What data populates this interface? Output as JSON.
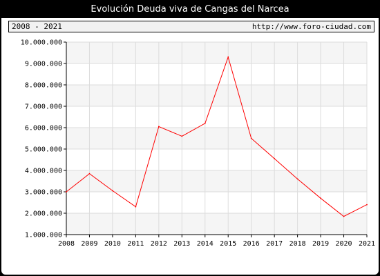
{
  "header": {
    "title": "Evolución Deuda viva de Cangas del Narcea",
    "period": "2008 - 2021",
    "url": "http://www.foro-ciudad.com"
  },
  "colors": {
    "line": "#ff0000",
    "band": "#f5f5f5",
    "grid": "#dcdcdc"
  },
  "chart_data": {
    "type": "line",
    "title": "Evolución Deuda viva de Cangas del Narcea",
    "x": [
      "2008",
      "2009",
      "2010",
      "2011",
      "2012",
      "2013",
      "2014",
      "2015",
      "2016",
      "2017",
      "2018",
      "2019",
      "2020",
      "2021"
    ],
    "series": [
      {
        "values": [
          3000000,
          3850000,
          3050000,
          2300000,
          6050000,
          5600000,
          6200000,
          9300000,
          5500000,
          4550000,
          3600000,
          2700000,
          1850000,
          2400000
        ]
      }
    ],
    "ylim": [
      1000000,
      10000000
    ],
    "yticks": [
      "1.000.000",
      "2.000.000",
      "3.000.000",
      "4.000.000",
      "5.000.000",
      "6.000.000",
      "7.000.000",
      "8.000.000",
      "9.000.000",
      "10.000.000"
    ],
    "grid": true
  }
}
